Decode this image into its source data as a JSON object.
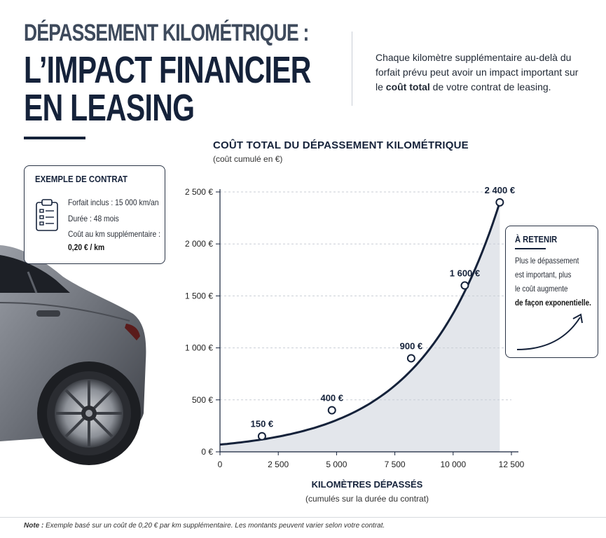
{
  "header": {
    "title_line1": "DÉPASSEMENT KILOMÉTRIQUE :",
    "title_line2": "L’IMPACT FINANCIER",
    "title_line3": "EN LEASING",
    "intro_part1": "Chaque kilomètre supplémentaire au-delà du forfait prévu peut avoir un impact important sur le ",
    "intro_bold": "coût total",
    "intro_part2": " de votre contrat de leasing."
  },
  "contract_box": {
    "title": "EXEMPLE DE CONTRAT",
    "icon": "clipboard-icon",
    "line1": "Forfait inclus : 15 000 km/an",
    "line2": "Durée : 48 mois",
    "line3": "Coût au km supplémentaire :",
    "line4": "0,20 € / km"
  },
  "retain_box": {
    "title": "À RETENIR",
    "line1": "Plus le dépassement",
    "line2": "est important, plus",
    "line3": "le coût augmente",
    "line4": "de façon exponentielle.",
    "icon": "curved-arrow-up-icon"
  },
  "chart_title": "COÛT TOTAL DU DÉPASSEMENT KILOMÉTRIQUE",
  "chart_subtitle": "(coût cumulé en €)",
  "x_axis": {
    "label": "KILOMÈTRES DÉPASSÉS",
    "sublabel": "(cumulés sur la durée du contrat)"
  },
  "note": {
    "bold": "Note :",
    "text": " Exemple basé sur un coût de 0,20 € par km supplémentaire. Les montants peuvent varier selon votre contrat."
  },
  "colors": {
    "navy": "#15223a",
    "area_fill": "#e3e6eb",
    "grid": "#c9ced6"
  },
  "chart_data": {
    "type": "area",
    "xlabel": "KILOMÈTRES DÉPASSÉS",
    "ylabel": "",
    "xlim": [
      0,
      12500
    ],
    "ylim": [
      0,
      2500
    ],
    "x_ticks": [
      0,
      2500,
      5000,
      7500,
      10000,
      12500
    ],
    "x_tick_labels": [
      "0",
      "2 500",
      "5 000",
      "7 500",
      "10 000",
      "12 500"
    ],
    "y_ticks": [
      0,
      500,
      1000,
      1500,
      2000,
      2500
    ],
    "y_tick_labels": [
      "0 €",
      "500 €",
      "1 000 €",
      "1 500 €",
      "2 000 €",
      "2 500 €"
    ],
    "grid": true,
    "curve": {
      "x_start": 0,
      "y_start": 70,
      "x_end": 12000,
      "y_end": 2400
    },
    "points": [
      {
        "x": 1800,
        "y": 150,
        "label": "150 €"
      },
      {
        "x": 4800,
        "y": 400,
        "label": "400 €"
      },
      {
        "x": 8200,
        "y": 900,
        "label": "900 €"
      },
      {
        "x": 10500,
        "y": 1600,
        "label": "1 600 €"
      },
      {
        "x": 12000,
        "y": 2400,
        "label": "2 400 €"
      }
    ]
  }
}
